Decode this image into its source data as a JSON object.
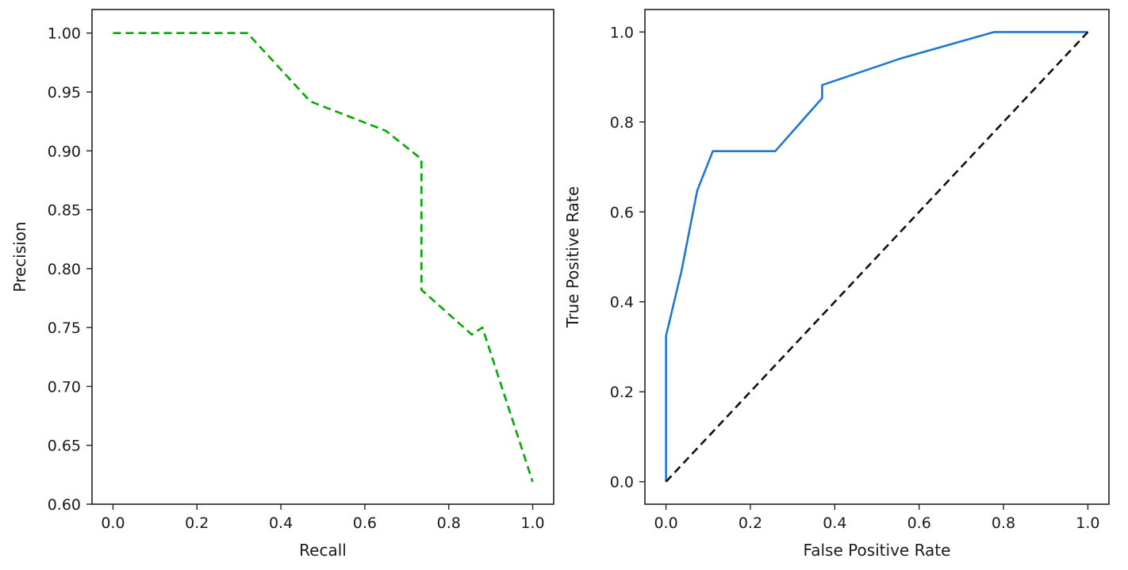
{
  "chart_data": [
    {
      "type": "line",
      "title": "",
      "xlabel": "Recall",
      "ylabel": "Precision",
      "xlim": [
        -0.05,
        1.05
      ],
      "ylim": [
        0.6,
        1.02
      ],
      "xticks": [
        "0.0",
        "0.2",
        "0.4",
        "0.6",
        "0.8",
        "1.0"
      ],
      "yticks": [
        "0.60",
        "0.65",
        "0.70",
        "0.75",
        "0.80",
        "0.85",
        "0.90",
        "0.95",
        "1.00"
      ],
      "grid": false,
      "series": [
        {
          "color": "#00aa00",
          "line_style": "dashed",
          "x": [
            0.0,
            0.32,
            0.47,
            0.65,
            0.735,
            0.735,
            0.735,
            0.855,
            0.88,
            1.0
          ],
          "y": [
            1.0,
            1.0,
            0.942,
            0.917,
            0.893,
            0.782,
            0.782,
            0.744,
            0.75,
            0.619
          ]
        }
      ]
    },
    {
      "type": "line",
      "title": "",
      "xlabel": "False Positive Rate",
      "ylabel": "True Positive Rate",
      "xlim": [
        -0.05,
        1.05
      ],
      "ylim": [
        -0.05,
        1.05
      ],
      "xticks": [
        "0.0",
        "0.2",
        "0.4",
        "0.6",
        "0.8",
        "1.0"
      ],
      "yticks": [
        "0.0",
        "0.2",
        "0.4",
        "0.6",
        "0.8",
        "1.0"
      ],
      "grid": false,
      "series": [
        {
          "color": "#1f77d4",
          "line_style": "solid",
          "x": [
            0.0,
            0.0,
            0.0,
            0.037,
            0.074,
            0.111,
            0.259,
            0.37,
            0.37,
            0.556,
            0.778,
            1.0
          ],
          "y": [
            0.0,
            0.324,
            0.324,
            0.47,
            0.647,
            0.735,
            0.735,
            0.853,
            0.882,
            0.941,
            1.0,
            1.0
          ]
        },
        {
          "color": "#111111",
          "line_style": "dashed",
          "x": [
            0.0,
            1.0
          ],
          "y": [
            0.0,
            1.0
          ]
        }
      ]
    }
  ]
}
